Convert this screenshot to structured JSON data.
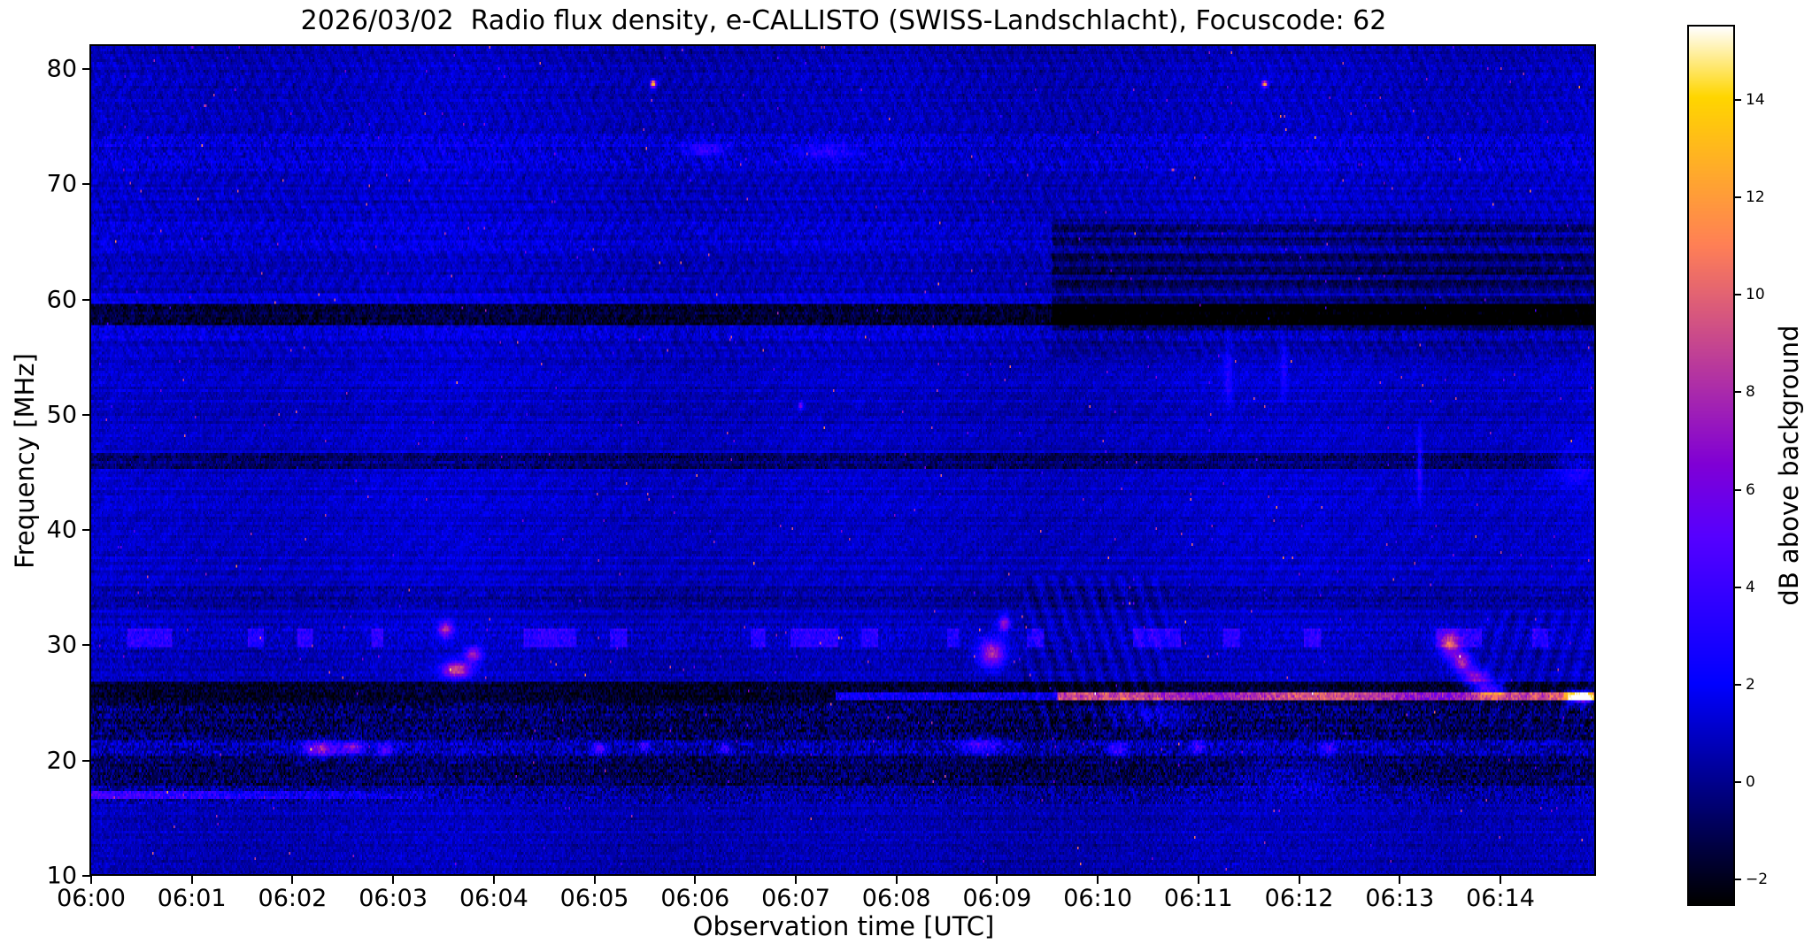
{
  "title": "2026/03/02  Radio flux density, e-CALLISTO (SWISS-Landschlacht), Focuscode: 62",
  "chart_data": {
    "type": "heatmap",
    "subtype": "radio-spectrogram",
    "title": "2026/03/02  Radio flux density, e-CALLISTO (SWISS-Landschlacht), Focuscode: 62",
    "x_axis": {
      "label": "Observation time [UTC]",
      "tick_labels": [
        "06:00",
        "06:01",
        "06:02",
        "06:03",
        "06:04",
        "06:05",
        "06:06",
        "06:07",
        "06:08",
        "06:09",
        "06:10",
        "06:11",
        "06:12",
        "06:13",
        "06:14"
      ],
      "range_minutes": [
        0,
        14.95
      ]
    },
    "y_axis": {
      "label": "Frequency [MHz]",
      "ticks": [
        80,
        70,
        60,
        50,
        40,
        30,
        20,
        10
      ],
      "range_mhz": [
        10,
        82
      ]
    },
    "colorbar": {
      "label": "dB above background",
      "ticks": [
        14,
        12,
        10,
        8,
        6,
        4,
        2,
        0,
        -2
      ],
      "vmin": -2.5,
      "vmax": 15.5,
      "colormap": "gnuplot2"
    },
    "background_db": 0.95,
    "noise_db": 0.55,
    "bands": [
      {
        "lo": 80.6,
        "hi": 82.0,
        "d": -0.45,
        "n": 0.4
      },
      {
        "lo": 74.5,
        "hi": 80.6,
        "d": -0.15,
        "n": 0.5
      },
      {
        "lo": 71.2,
        "hi": 74.5,
        "d": 0.25,
        "n": 0.95
      },
      {
        "lo": 67.0,
        "hi": 71.2,
        "d": -0.1,
        "n": 0.55
      },
      {
        "lo": 64.2,
        "hi": 67.0,
        "d": 0.15,
        "n": 0.75
      },
      {
        "lo": 60.6,
        "hi": 64.2,
        "d": -0.15,
        "n": 0.55
      },
      {
        "lo": 59.7,
        "hi": 60.6,
        "d": 0.5,
        "n": 0.5
      },
      {
        "lo": 57.7,
        "hi": 59.7,
        "d": -2.4,
        "n": 0.9
      },
      {
        "lo": 56.3,
        "hi": 57.7,
        "d": 0.35,
        "n": 0.8
      },
      {
        "lo": 47.2,
        "hi": 56.3,
        "d": -0.05,
        "n": 0.45
      },
      {
        "lo": 45.2,
        "hi": 46.7,
        "d": -1.5,
        "n": 0.9
      },
      {
        "lo": 35.2,
        "hi": 45.2,
        "d": 0.0,
        "n": 0.45
      },
      {
        "lo": 33.2,
        "hi": 35.2,
        "d": -0.6,
        "n": 0.8
      },
      {
        "lo": 31.9,
        "hi": 33.2,
        "d": -0.1,
        "n": 0.5
      },
      {
        "lo": 29.7,
        "hi": 31.9,
        "d": 0.1,
        "n": 0.85
      },
      {
        "lo": 26.9,
        "hi": 29.7,
        "d": -0.25,
        "n": 0.7
      },
      {
        "lo": 24.95,
        "hi": 26.9,
        "d": -2.7,
        "n": 1.1
      },
      {
        "lo": 21.7,
        "hi": 24.95,
        "d": -1.7,
        "n": 1.7
      },
      {
        "lo": 20.5,
        "hi": 21.7,
        "d": -0.35,
        "n": 1.7
      },
      {
        "lo": 17.9,
        "hi": 20.5,
        "d": -1.8,
        "n": 1.5
      },
      {
        "lo": 16.3,
        "hi": 17.9,
        "d": -0.7,
        "n": 1.4
      },
      {
        "lo": 10.0,
        "hi": 16.3,
        "d": -0.25,
        "n": 0.6
      }
    ],
    "rfi_segments_30mhz": {
      "f_lo": 29.95,
      "f_hi": 31.35,
      "amp_db": 2.4,
      "intervals_min": [
        [
          0.35,
          0.8
        ],
        [
          1.55,
          1.72
        ],
        [
          2.05,
          2.2
        ],
        [
          2.78,
          2.9
        ],
        [
          4.3,
          4.82
        ],
        [
          5.15,
          5.32
        ],
        [
          6.55,
          6.7
        ],
        [
          6.95,
          7.42
        ],
        [
          7.65,
          7.82
        ],
        [
          8.5,
          8.62
        ],
        [
          9.3,
          9.46
        ],
        [
          10.35,
          10.82
        ],
        [
          11.25,
          11.42
        ],
        [
          12.05,
          12.22
        ],
        [
          13.35,
          13.82
        ],
        [
          14.32,
          14.48
        ]
      ]
    },
    "line_25_5mhz": {
      "f_lo": 25.25,
      "f_hi": 25.85,
      "bright_from": 9.6,
      "amp_bright": 10,
      "mid_from": 7.4,
      "amp_mid": 4
    },
    "line_17mhz": {
      "f_lo": 16.75,
      "f_hi": 17.35,
      "t_end": 3.4,
      "amp": 3.4
    },
    "receiver_switch": {
      "t": 9.55,
      "f_lo": 55,
      "f_hi": 67,
      "d": -0.6,
      "dark_lines": [
        61.3,
        62.5,
        63.7,
        65.0,
        66.2
      ],
      "line_halfwidth": 0.3,
      "line_d": -1.3,
      "deep_lo": 57.2,
      "deep_hi": 60.2,
      "deep_d": -1.4
    },
    "chevrons": [
      {
        "t0": 9.25,
        "t1": 10.7,
        "f0": 23,
        "f1": 36,
        "amp": 0.7,
        "kt": 38,
        "kf": 1.3
      },
      {
        "t0": 13.8,
        "t1": 14.95,
        "f0": 23,
        "f1": 33,
        "amp": 0.6,
        "kt": 36,
        "kf": -1.2
      }
    ],
    "features": [
      {
        "t": 5.585,
        "f": 78.7,
        "st": 0.02,
        "sf": 0.22,
        "a": 14
      },
      {
        "t": 11.66,
        "f": 78.7,
        "st": 0.02,
        "sf": 0.2,
        "a": 11.5
      },
      {
        "t": 3.52,
        "f": 31.4,
        "st": 0.05,
        "sf": 0.5,
        "a": 7
      },
      {
        "t": 3.63,
        "f": 27.9,
        "st": 0.1,
        "sf": 0.5,
        "a": 8.5
      },
      {
        "t": 3.8,
        "f": 29.2,
        "st": 0.06,
        "sf": 0.45,
        "a": 6.5
      },
      {
        "t": 2.28,
        "f": 21.0,
        "st": 0.12,
        "sf": 0.45,
        "a": 7
      },
      {
        "t": 2.6,
        "f": 21.1,
        "st": 0.08,
        "sf": 0.4,
        "a": 6
      },
      {
        "t": 2.92,
        "f": 20.9,
        "st": 0.05,
        "sf": 0.4,
        "a": 5
      },
      {
        "t": 5.05,
        "f": 21.0,
        "st": 0.05,
        "sf": 0.35,
        "a": 5
      },
      {
        "t": 5.5,
        "f": 21.2,
        "st": 0.04,
        "sf": 0.3,
        "a": 4.5
      },
      {
        "t": 6.3,
        "f": 21.0,
        "st": 0.04,
        "sf": 0.3,
        "a": 4
      },
      {
        "t": 7.05,
        "f": 50.8,
        "st": 0.015,
        "sf": 0.2,
        "a": 6
      },
      {
        "t": 8.95,
        "f": 29.3,
        "st": 0.09,
        "sf": 0.85,
        "a": 7.5
      },
      {
        "t": 9.07,
        "f": 31.9,
        "st": 0.04,
        "sf": 0.5,
        "a": 6.5
      },
      {
        "t": 8.85,
        "f": 21.3,
        "st": 0.15,
        "sf": 0.5,
        "a": 4
      },
      {
        "t": 10.2,
        "f": 21.0,
        "st": 0.06,
        "sf": 0.4,
        "a": 4.5
      },
      {
        "t": 11.0,
        "f": 21.2,
        "st": 0.05,
        "sf": 0.4,
        "a": 4
      },
      {
        "t": 12.3,
        "f": 21.0,
        "st": 0.05,
        "sf": 0.4,
        "a": 4
      },
      {
        "t": 13.5,
        "f": 30.0,
        "st": 0.07,
        "sf": 0.8,
        "a": 7
      },
      {
        "t": 13.62,
        "f": 28.6,
        "st": 0.06,
        "sf": 0.6,
        "a": 7.5
      },
      {
        "t": 13.75,
        "f": 27.2,
        "st": 0.08,
        "sf": 0.6,
        "a": 6
      },
      {
        "t": 13.9,
        "f": 26.2,
        "st": 0.1,
        "sf": 0.5,
        "a": 6
      },
      {
        "t": 14.8,
        "f": 25.5,
        "st": 0.1,
        "sf": 0.35,
        "a": 11
      },
      {
        "t": 6.1,
        "f": 73.0,
        "st": 0.15,
        "sf": 0.4,
        "a": 3
      },
      {
        "t": 7.3,
        "f": 72.8,
        "st": 0.2,
        "sf": 0.4,
        "a": 2.5
      },
      {
        "t": 11.3,
        "f": 53.5,
        "st": 0.03,
        "sf": 2.0,
        "a": 2.2
      },
      {
        "t": 11.85,
        "f": 54.0,
        "st": 0.025,
        "sf": 1.8,
        "a": 2.0
      },
      {
        "t": 13.2,
        "f": 45.5,
        "st": 0.02,
        "sf": 2.2,
        "a": 3
      },
      {
        "t": 14.75,
        "f": 45.5,
        "st": 0.15,
        "sf": 1.2,
        "a": 1.8
      },
      {
        "t": 10.55,
        "f": 24.0,
        "st": 0.3,
        "sf": 1.0,
        "a": 2.0
      },
      {
        "t": 12.0,
        "f": 18.5,
        "st": 0.5,
        "sf": 1.0,
        "a": 1.5
      }
    ]
  }
}
